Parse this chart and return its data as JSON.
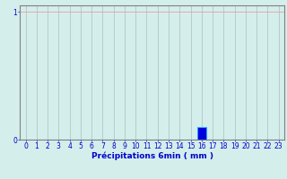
{
  "title": "",
  "xlabel": "Précipitations 6min ( mm )",
  "ylabel": "",
  "xlim": [
    -0.5,
    23.5
  ],
  "ylim": [
    0,
    1.05
  ],
  "yticks": [
    0,
    1
  ],
  "xtick_labels": [
    "0",
    "1",
    "2",
    "3",
    "4",
    "5",
    "6",
    "7",
    "8",
    "9",
    "10",
    "11",
    "12",
    "13",
    "14",
    "15",
    "16",
    "17",
    "18",
    "19",
    "20",
    "21",
    "22",
    "23"
  ],
  "bar_values": [
    0,
    0,
    0,
    0,
    0,
    0,
    0,
    0,
    0,
    0,
    0,
    0,
    0,
    0,
    0,
    0,
    0.1,
    0,
    0,
    0,
    0,
    0,
    0,
    0
  ],
  "bar_positions": [
    0,
    1,
    2,
    3,
    4,
    5,
    6,
    7,
    8,
    9,
    10,
    11,
    12,
    13,
    14,
    15,
    16,
    17,
    18,
    19,
    20,
    21,
    22,
    23
  ],
  "bar_color": "#0000dd",
  "bar_edge_color": "#3399ff",
  "background_color": "#d4eeec",
  "grid_color_h": "#e8a0a0",
  "grid_color_v": "#b0c8c8",
  "axes_color": "#808080",
  "tick_color": "#0000cc",
  "label_color": "#0000cc",
  "label_fontsize": 6.5,
  "tick_fontsize": 5.5,
  "bar_width": 0.85
}
